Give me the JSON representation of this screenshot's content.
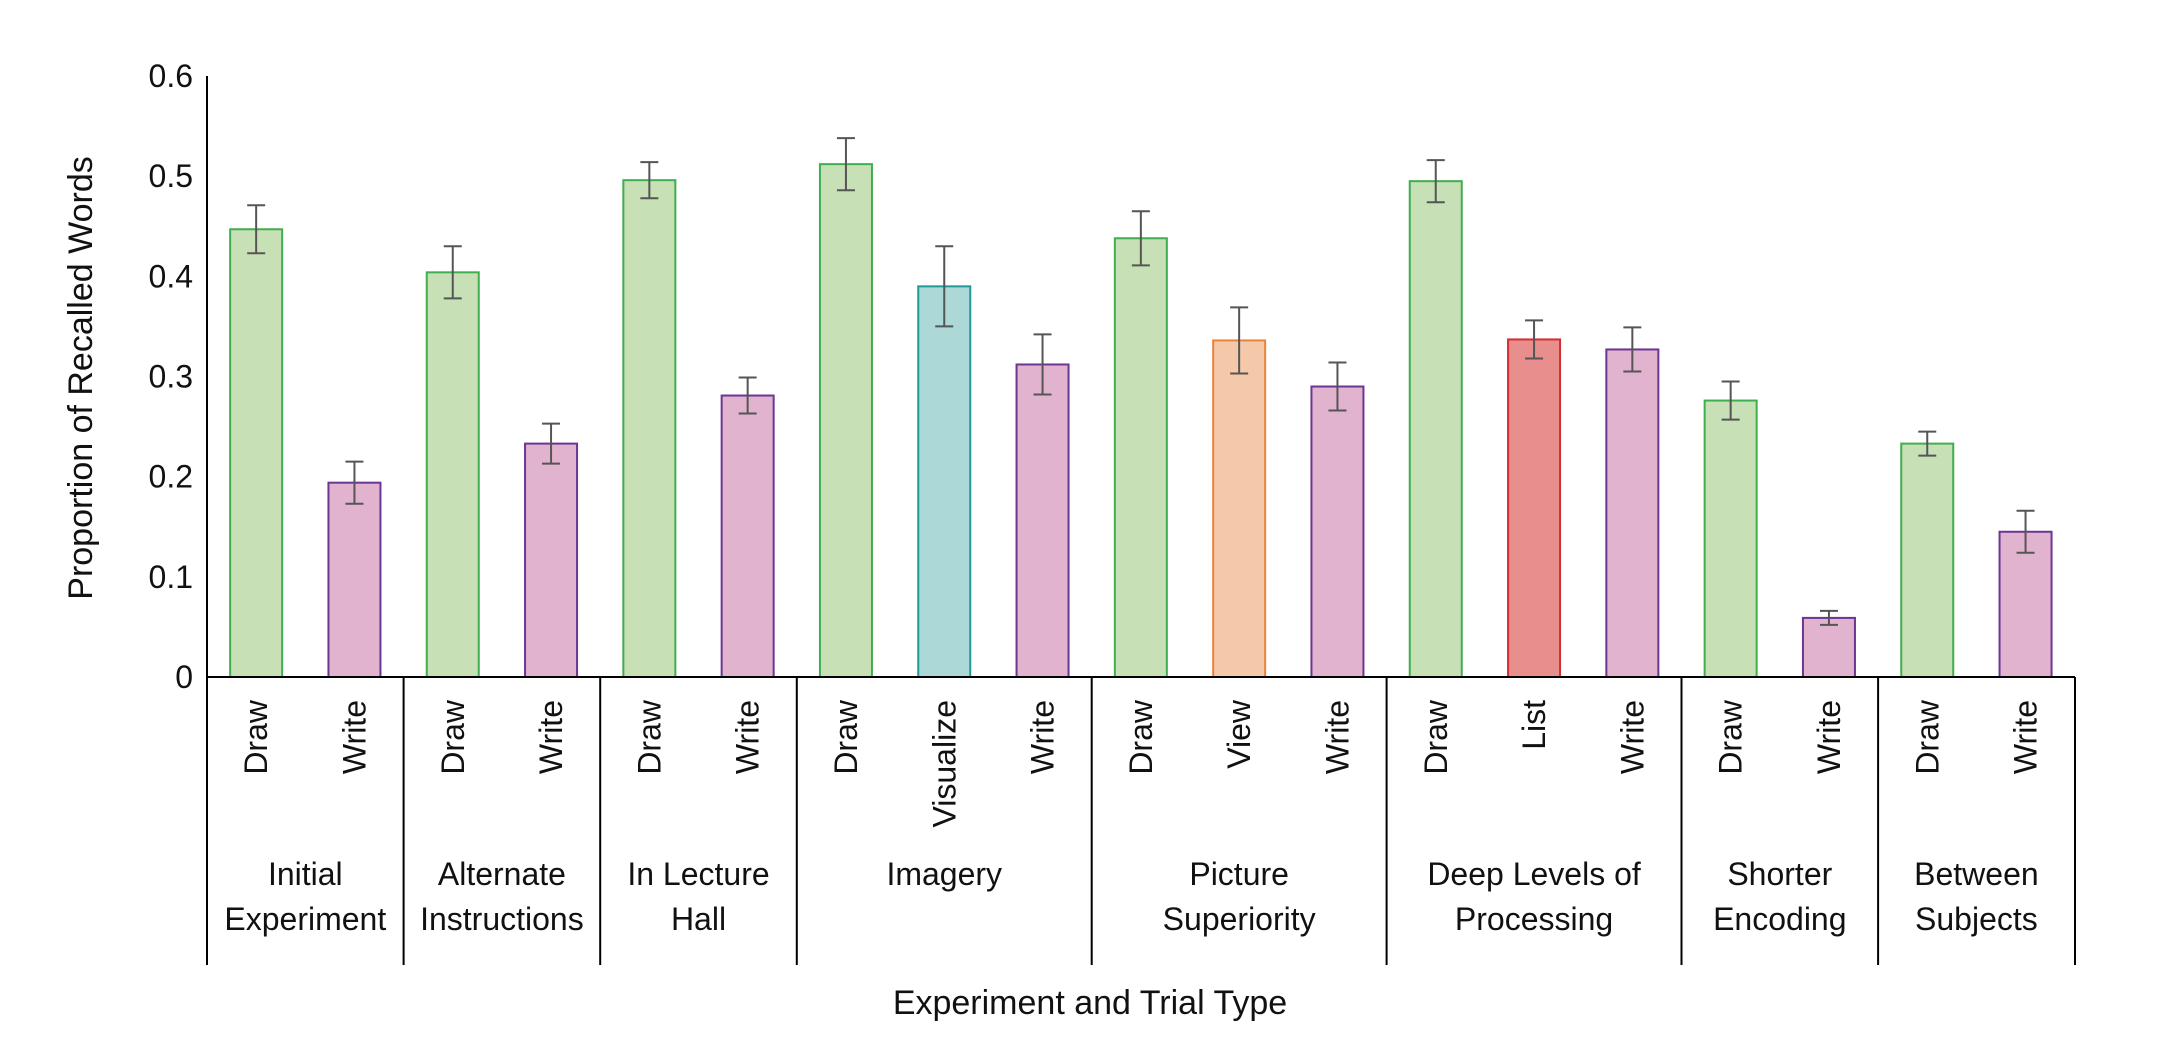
{
  "chart_data": {
    "type": "bar",
    "title": "",
    "xlabel": "Experiment and Trial Type",
    "ylabel": "Proportion of Recalled Words",
    "ylim": [
      0,
      0.6
    ],
    "yticks": [
      0,
      0.1,
      0.2,
      0.3,
      0.4,
      0.5,
      0.6
    ],
    "ytick_labels": [
      "0",
      "0.1",
      "0.2",
      "0.3",
      "0.4",
      "0.5",
      "0.6"
    ],
    "grid": false,
    "legend": "none",
    "colors": {
      "Draw": {
        "fill": "#c8e0b5",
        "stroke": "#3fae4f"
      },
      "Write": {
        "fill": "#e1b3cf",
        "stroke": "#6b3592"
      },
      "Visualize": {
        "fill": "#acd8d8",
        "stroke": "#1f9a98"
      },
      "View": {
        "fill": "#f3c9aa",
        "stroke": "#e8843a"
      },
      "List": {
        "fill": "#e88e8c",
        "stroke": "#d62d33"
      },
      "error_bar": "#555555",
      "axis": "#000000"
    },
    "groups": [
      {
        "label_lines": [
          "Initial",
          "Experiment"
        ],
        "bars": [
          {
            "condition": "Draw",
            "value": 0.447,
            "error": 0.024
          },
          {
            "condition": "Write",
            "value": 0.194,
            "error": 0.021
          }
        ]
      },
      {
        "label_lines": [
          "Alternate",
          "Instructions"
        ],
        "bars": [
          {
            "condition": "Draw",
            "value": 0.404,
            "error": 0.026
          },
          {
            "condition": "Write",
            "value": 0.233,
            "error": 0.02
          }
        ]
      },
      {
        "label_lines": [
          "In Lecture",
          "Hall"
        ],
        "bars": [
          {
            "condition": "Draw",
            "value": 0.496,
            "error": 0.018
          },
          {
            "condition": "Write",
            "value": 0.281,
            "error": 0.018
          }
        ]
      },
      {
        "label_lines": [
          "Imagery"
        ],
        "bars": [
          {
            "condition": "Draw",
            "value": 0.512,
            "error": 0.026
          },
          {
            "condition": "Visualize",
            "value": 0.39,
            "error": 0.04
          },
          {
            "condition": "Write",
            "value": 0.312,
            "error": 0.03
          }
        ]
      },
      {
        "label_lines": [
          "Picture",
          "Superiority"
        ],
        "bars": [
          {
            "condition": "Draw",
            "value": 0.438,
            "error": 0.027
          },
          {
            "condition": "View",
            "value": 0.336,
            "error": 0.033
          },
          {
            "condition": "Write",
            "value": 0.29,
            "error": 0.024
          }
        ]
      },
      {
        "label_lines": [
          "Deep Levels of",
          "Processing"
        ],
        "bars": [
          {
            "condition": "Draw",
            "value": 0.495,
            "error": 0.021
          },
          {
            "condition": "List",
            "value": 0.337,
            "error": 0.019
          },
          {
            "condition": "Write",
            "value": 0.327,
            "error": 0.022
          }
        ]
      },
      {
        "label_lines": [
          "Shorter",
          "Encoding"
        ],
        "bars": [
          {
            "condition": "Draw",
            "value": 0.276,
            "error": 0.019
          },
          {
            "condition": "Write",
            "value": 0.059,
            "error": 0.007
          }
        ]
      },
      {
        "label_lines": [
          "Between",
          "Subjects"
        ],
        "bars": [
          {
            "condition": "Draw",
            "value": 0.233,
            "error": 0.012
          },
          {
            "condition": "Write",
            "value": 0.145,
            "error": 0.021
          }
        ]
      }
    ]
  }
}
